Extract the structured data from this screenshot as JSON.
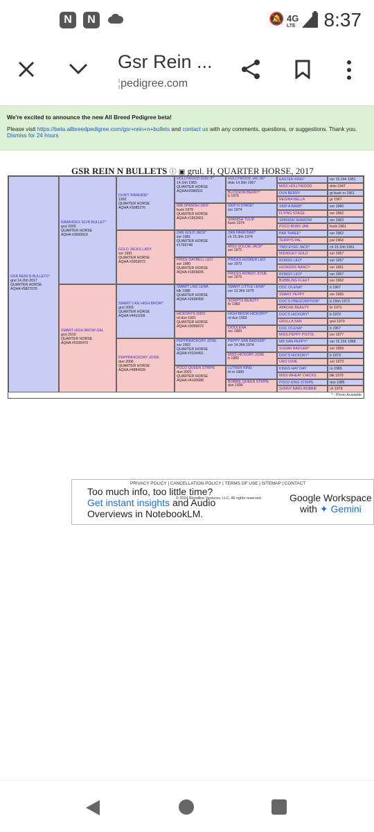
{
  "status_bar": {
    "time": "8:37",
    "network": "4G",
    "network_sub": "LTE"
  },
  "browser": {
    "title": "Gsr Rein ...",
    "url": "pedigree.com"
  },
  "banner": {
    "headline": "We're excited to announce the new All Breed Pedigree beta!",
    "text_before": "Please visit",
    "beta_link": "https://beta.allbreedpedigree.com/gsr+rein+n+bullets",
    "text_and": "and",
    "contact_link": "contact us",
    "text_after": "with any comments, questions, or suggestions. Thank you.",
    "dismiss_link": "Dismiss for 24 hours"
  },
  "pedigree": {
    "horse_name": "GSR REIN N BULLETS",
    "horse_info": "grul. H, QUARTER HORSE, 2017",
    "footnote": "* - Photo Available",
    "g1": [
      {
        "name": "GSR REIN N BULLETS*",
        "lines": [
          "grul 14.2hh 2017",
          "QUARTER HORSE",
          "AQHA #5827076"
        ]
      }
    ],
    "g2": [
      {
        "name": "RAWHIDES SLVR BULLET*",
        "lines": [
          "grul 2000",
          "QUARTER HORSE",
          "AQHA #3993918"
        ]
      },
      {
        "name": "SMART HIGH BROW GAL",
        "lines": [
          "grul 2010",
          "QUARTER HORSE",
          "AQHA #5336479"
        ]
      }
    ],
    "g3": [
      {
        "name": "DUNIT RAWHIDE*",
        "lines": [
          "1992",
          "QUARTER HORSE",
          "AQHA #3085276"
        ]
      },
      {
        "name": "GOLD JACKS LADY",
        "lines": [
          "sor 1991",
          "QUARTER HORSE",
          "AQHA #3003072"
        ]
      },
      {
        "name": "SMART LIKE HIGH BROW*",
        "lines": [
          "grul 2003",
          "QUARTER HORSE",
          "AQHA #4411609"
        ]
      },
      {
        "name": "PEPPINHICKORY JOSIE",
        "lines": [
          "dun 2006",
          "QUARTER HORSE",
          "AQHA #4884939"
        ]
      }
    ],
    "g4": [
      {
        "name": "HOLLYWOOD DUN IT*",
        "lines": [
          "14.1hh 1983",
          "QUARTER HORSE",
          "AQHA#2086591"
        ]
      },
      {
        "name": "IMA SPANISH SKIP",
        "lines": [
          "buck 1979",
          "QUARTER HORSE",
          "AQHA #1552661"
        ]
      },
      {
        "name": "ZAN GOLD JACK*",
        "lines": [
          "sor 1981",
          "QUARTER HORSE",
          "#1766748"
        ]
      },
      {
        "name": "PRICE DAYBELL LEO",
        "lines": [
          "sor 1980",
          "QUARTER HORSE",
          "AQHA #1659835"
        ]
      },
      {
        "name": "SMART LIKE LENA",
        "lines": [
          "blk 1988",
          "QUARTER HORSE",
          "AQHA #2698458"
        ]
      },
      {
        "name": "HICKORYS DIDO",
        "lines": [
          "rd dun 1991",
          "QUARTER HORSE",
          "AQHA #3099879"
        ]
      },
      {
        "name": "PEPPINHICKORY JOSE",
        "lines": [
          "sor 1992",
          "QUARTER HORSE",
          "AQHA #3104491"
        ]
      },
      {
        "name": "POCO QUEEN STRIPE",
        "lines": [
          "dun 2001",
          "QUARTER HORSE",
          "AQHA #4100688"
        ]
      }
    ],
    "g5": [
      {
        "name": "HOLLYWOOD JAC 86*",
        "lines": [
          "dnlo 14.3hh 1967"
        ]
      },
      {
        "name": "BLOSSOM BERRY*",
        "lines": [
          "b 1975"
        ]
      },
      {
        "name": "SKIP N STAGE*",
        "lines": [
          "sor 1974"
        ]
      },
      {
        "name": "SPANISH TULIP",
        "lines": [
          "buck 1974"
        ]
      },
      {
        "name": "ZAN PARR BAR*",
        "lines": [
          "ch 15.3hh 1974"
        ]
      },
      {
        "name": "MISS GOLDIE JACK*",
        "lines": [
          "sor 1972"
        ]
      },
      {
        "name": "PRICES HUSKER LEO",
        "lines": [
          "sor 1973"
        ]
      },
      {
        "name": "PRICES RONDO JOSIE",
        "lines": [
          "sor 1976"
        ]
      },
      {
        "name": "SMART LITTLE LENA*",
        "lines": [
          "sor 13.3hh 1979"
        ]
      },
      {
        "name": "SCRIPTS BEAUTY",
        "lines": [
          "br 1982"
        ]
      },
      {
        "name": "HIGH BROW HICKORY*",
        "lines": [
          "rd dun 1983"
        ]
      },
      {
        "name": "DIDOLENA",
        "lines": [
          "sor 1983"
        ]
      },
      {
        "name": "PEPPY SAN BADGER*",
        "lines": [
          "sor 14.3hh 1974"
        ]
      },
      {
        "name": "MISS HICKORY JOSE",
        "lines": [
          "b 1983"
        ]
      },
      {
        "name": "LUTHER KING",
        "lines": [
          "bl ro 1989"
        ]
      },
      {
        "name": "BOBBIE QUEEN STRIPE",
        "lines": [
          "dun 1996"
        ]
      }
    ],
    "g6": [
      {
        "name": "EASTER KING*",
        "info": "sor 15.1hh 1951"
      },
      {
        "name": "MISS HOLLYWOOD",
        "info": "dnlo 1947"
      },
      {
        "name": "DUN BERRY",
        "info": "gr buck ro 1961"
      },
      {
        "name": "REGINA BELLA",
        "info": "gr 1967"
      },
      {
        "name": "SKIP A BARB*",
        "info": "sor 1960"
      },
      {
        "name": "FLYING STAGE",
        "info": "sor 1962"
      },
      {
        "name": "SPANISH SHADOW",
        "info": "sor 1963"
      },
      {
        "name": "POCO BOBS JAN",
        "info": "buck 1961"
      },
      {
        "name": "PAR THREE*",
        "info": "sor 1962"
      },
      {
        "name": "TERRYS PAL",
        "info": "pal 1964"
      },
      {
        "name": "TWO EYED JACK*",
        "info": "ch 15.1hh 1961"
      },
      {
        "name": "MIDNIGHT GOLD",
        "info": "sor 1957"
      },
      {
        "name": "RONDO LEO*",
        "info": "sor 1957"
      },
      {
        "name": "HUSKERS NANCY",
        "info": "sor 1961"
      },
      {
        "name": "RONDO LEO*",
        "info": "sor 1957"
      },
      {
        "name": "BUBBLING FLEET",
        "info": "sor 1962"
      },
      {
        "name": "DOC O'LENA*",
        "info": "b 1967"
      },
      {
        "name": "SMART PEPPY",
        "info": "sor 1965"
      },
      {
        "name": "DOC'S PRESCRIPTION*",
        "info": "b 15hh 1973"
      },
      {
        "name": "APACHE BEAUTY",
        "info": "br 1971"
      },
      {
        "name": "DOC'S HICKORY*",
        "info": "b 1973"
      },
      {
        "name": "GRULLA SAN",
        "info": "grul 1970"
      },
      {
        "name": "DOC O'LENA*",
        "info": "b 1967"
      },
      {
        "name": "MISS PEPPY PISTOL",
        "info": "sor 1977"
      },
      {
        "name": "MR SAN PEPPY*",
        "info": "sor 15.1hh 1968"
      },
      {
        "name": "SUGAR BADGER*",
        "info": "sor 1959"
      },
      {
        "name": "DOC'S HICKORY*",
        "info": "b 1973"
      },
      {
        "name": "UNO DIXIE",
        "info": "sor 1973"
      },
      {
        "name": "KINGS HAY DAY",
        "info": "ro 1983"
      },
      {
        "name": "MISS WHEAT CHICKS",
        "info": "blk 1979"
      },
      {
        "name": "POCO KING STRIPE",
        "info": "dun 1985"
      },
      {
        "name": "SUNNY BARS BOBBIE",
        "info": "ch 1979"
      }
    ]
  },
  "ad": {
    "links": "PRIVACY POLICY | CANCELLATION POLICY | TERMS OF USE | SITEMAP | CONTACT",
    "copyright": "© 2024 Bloodline Ventures, LLC. All rights reserved.",
    "line1": "Too much info, too little time?",
    "line2a": "Get instant insights",
    "line2b": " and Audio",
    "line3": "Overviews in NotebookLM.",
    "brand1": "Google Workspace",
    "brand2a": "with ",
    "brand2b": "Gemini"
  },
  "colors": {
    "male": "#c9ccf5",
    "female": "#f7c8c8",
    "banner": "#ddf1d7",
    "link": "#1a55c8"
  }
}
